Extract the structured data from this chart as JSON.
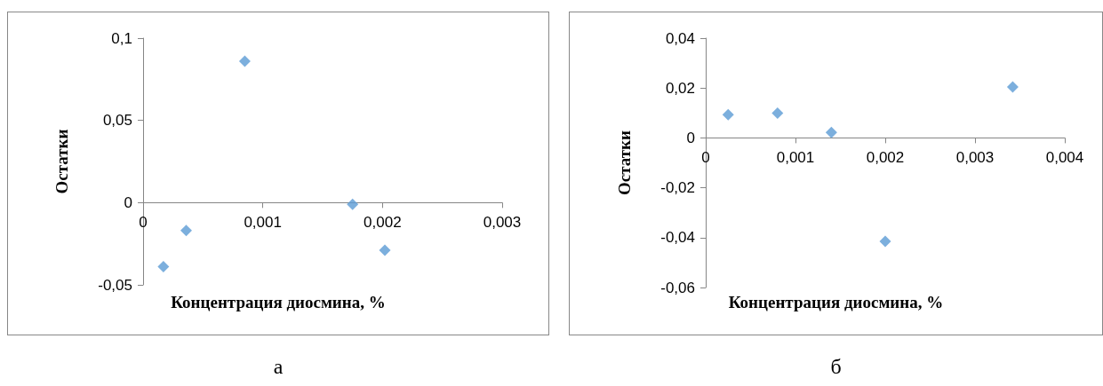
{
  "chart_data": [
    {
      "type": "scatter",
      "xlabel": "Концентрация диосмина, %",
      "ylabel": "Остатки",
      "annotations": [
        "а"
      ],
      "marker": "diamond",
      "grid": false,
      "x": [
        0.00017,
        0.00036,
        0.00085,
        0.00175,
        0.00202
      ],
      "series": [
        {
          "color": "#5b9bd5",
          "values": [
            -0.039,
            -0.017,
            0.086,
            -0.001,
            -0.029
          ]
        }
      ],
      "xlim": [
        0,
        0.003
      ],
      "xticks": [
        0,
        {
          "value": 0.001,
          "label": "0,001"
        },
        {
          "value": 0.002,
          "label": "0,002"
        },
        {
          "value": 0.003,
          "label": "0,003"
        }
      ],
      "ylim": [
        -0.05,
        0.1
      ],
      "yticks": [
        {
          "value": -0.05,
          "label": "-0,05"
        },
        0,
        {
          "value": 0.05,
          "label": "0,05"
        },
        {
          "value": 0.1,
          "label": "0,1"
        }
      ]
    },
    {
      "type": "scatter",
      "xlabel": "Концентрация диосмина, %",
      "ylabel": "Остатки",
      "annotations": [
        "б"
      ],
      "marker": "diamond",
      "grid": false,
      "x": [
        0.00025,
        0.0008,
        0.0014,
        0.002,
        0.00342
      ],
      "series": [
        {
          "color": "#5b9bd5",
          "values": [
            0.0093,
            0.0099,
            0.0022,
            -0.0415,
            0.0204
          ]
        }
      ],
      "xlim": [
        0,
        0.004
      ],
      "xticks": [
        0,
        {
          "value": 0.001,
          "label": "0,001"
        },
        {
          "value": 0.002,
          "label": "0,002"
        },
        {
          "value": 0.003,
          "label": "0,003"
        },
        {
          "value": 0.004,
          "label": "0,004"
        }
      ],
      "ylim": [
        -0.06,
        0.04
      ],
      "yticks": [
        {
          "value": -0.06,
          "label": "-0,06"
        },
        {
          "value": -0.04,
          "label": "-0,04"
        },
        {
          "value": -0.02,
          "label": "-0,02"
        },
        0,
        {
          "value": 0.02,
          "label": "0,02"
        },
        {
          "value": 0.04,
          "label": "0,04"
        }
      ]
    }
  ]
}
